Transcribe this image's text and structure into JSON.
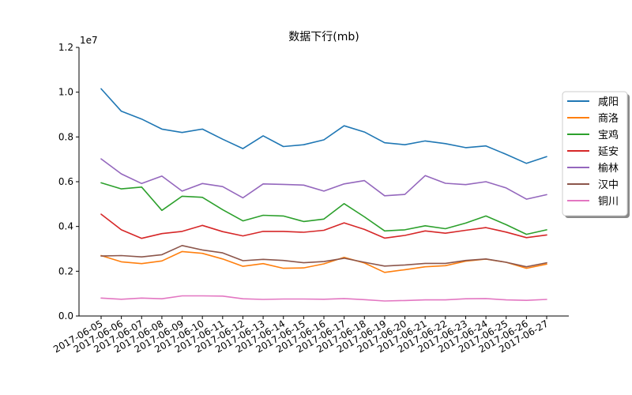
{
  "chart_data": {
    "type": "line",
    "title": "数据下行(mb)",
    "xlabel": "",
    "ylabel": "",
    "y_multiplier": "1e7",
    "ylim": [
      0,
      1.2
    ],
    "y_ticks": [
      "0.0",
      "0.2",
      "0.4",
      "0.6",
      "0.8",
      "1.0",
      "1.2"
    ],
    "categories": [
      "2017-06-05",
      "2017-06-06",
      "2017-06-07",
      "2017-06-08",
      "2017-06-09",
      "2017-06-10",
      "2017-06-11",
      "2017-06-12",
      "2017-06-13",
      "2017-06-14",
      "2017-06-15",
      "2017-06-16",
      "2017-06-17",
      "2017-06-18",
      "2017-06-19",
      "2017-06-20",
      "2017-06-21",
      "2017-06-22",
      "2017-06-23",
      "2017-06-24",
      "2017-06-25",
      "2017-06-26",
      "2017-06-27"
    ],
    "grid": false,
    "legend_position": "right",
    "series": [
      {
        "name": "咸阳",
        "color": "#1f77b4",
        "values": [
          1.015,
          0.915,
          0.88,
          0.835,
          0.82,
          0.835,
          0.79,
          0.748,
          0.805,
          0.757,
          0.765,
          0.787,
          0.85,
          0.822,
          0.774,
          0.765,
          0.782,
          0.77,
          0.752,
          0.76,
          0.722,
          0.682,
          0.712
        ]
      },
      {
        "name": "商洛",
        "color": "#ff7f0e",
        "values": [
          0.27,
          0.242,
          0.234,
          0.246,
          0.288,
          0.28,
          0.255,
          0.222,
          0.234,
          0.213,
          0.215,
          0.233,
          0.262,
          0.237,
          0.195,
          0.207,
          0.22,
          0.225,
          0.245,
          0.254,
          0.24,
          0.213,
          0.232
        ]
      },
      {
        "name": "宝鸡",
        "color": "#2ca02c",
        "values": [
          0.595,
          0.568,
          0.576,
          0.472,
          0.535,
          0.53,
          0.475,
          0.425,
          0.45,
          0.447,
          0.422,
          0.433,
          0.502,
          0.443,
          0.38,
          0.385,
          0.403,
          0.39,
          0.415,
          0.447,
          0.408,
          0.365,
          0.385
        ]
      },
      {
        "name": "延安",
        "color": "#d62728",
        "values": [
          0.455,
          0.385,
          0.347,
          0.368,
          0.378,
          0.405,
          0.377,
          0.358,
          0.378,
          0.378,
          0.374,
          0.383,
          0.416,
          0.387,
          0.348,
          0.36,
          0.38,
          0.37,
          0.383,
          0.395,
          0.375,
          0.35,
          0.362
        ]
      },
      {
        "name": "榆林",
        "color": "#9467bd",
        "values": [
          0.702,
          0.635,
          0.592,
          0.625,
          0.558,
          0.592,
          0.578,
          0.528,
          0.59,
          0.588,
          0.585,
          0.558,
          0.59,
          0.605,
          0.537,
          0.543,
          0.627,
          0.593,
          0.587,
          0.6,
          0.572,
          0.522,
          0.542
        ]
      },
      {
        "name": "汉中",
        "color": "#8c564b",
        "values": [
          0.268,
          0.27,
          0.264,
          0.274,
          0.315,
          0.295,
          0.282,
          0.247,
          0.253,
          0.248,
          0.238,
          0.243,
          0.258,
          0.24,
          0.223,
          0.228,
          0.235,
          0.235,
          0.248,
          0.255,
          0.24,
          0.22,
          0.238
        ]
      },
      {
        "name": "铜川",
        "color": "#e377c2",
        "values": [
          0.08,
          0.075,
          0.08,
          0.077,
          0.09,
          0.09,
          0.089,
          0.077,
          0.074,
          0.076,
          0.076,
          0.075,
          0.078,
          0.073,
          0.067,
          0.069,
          0.072,
          0.072,
          0.077,
          0.078,
          0.072,
          0.07,
          0.074
        ]
      }
    ]
  }
}
